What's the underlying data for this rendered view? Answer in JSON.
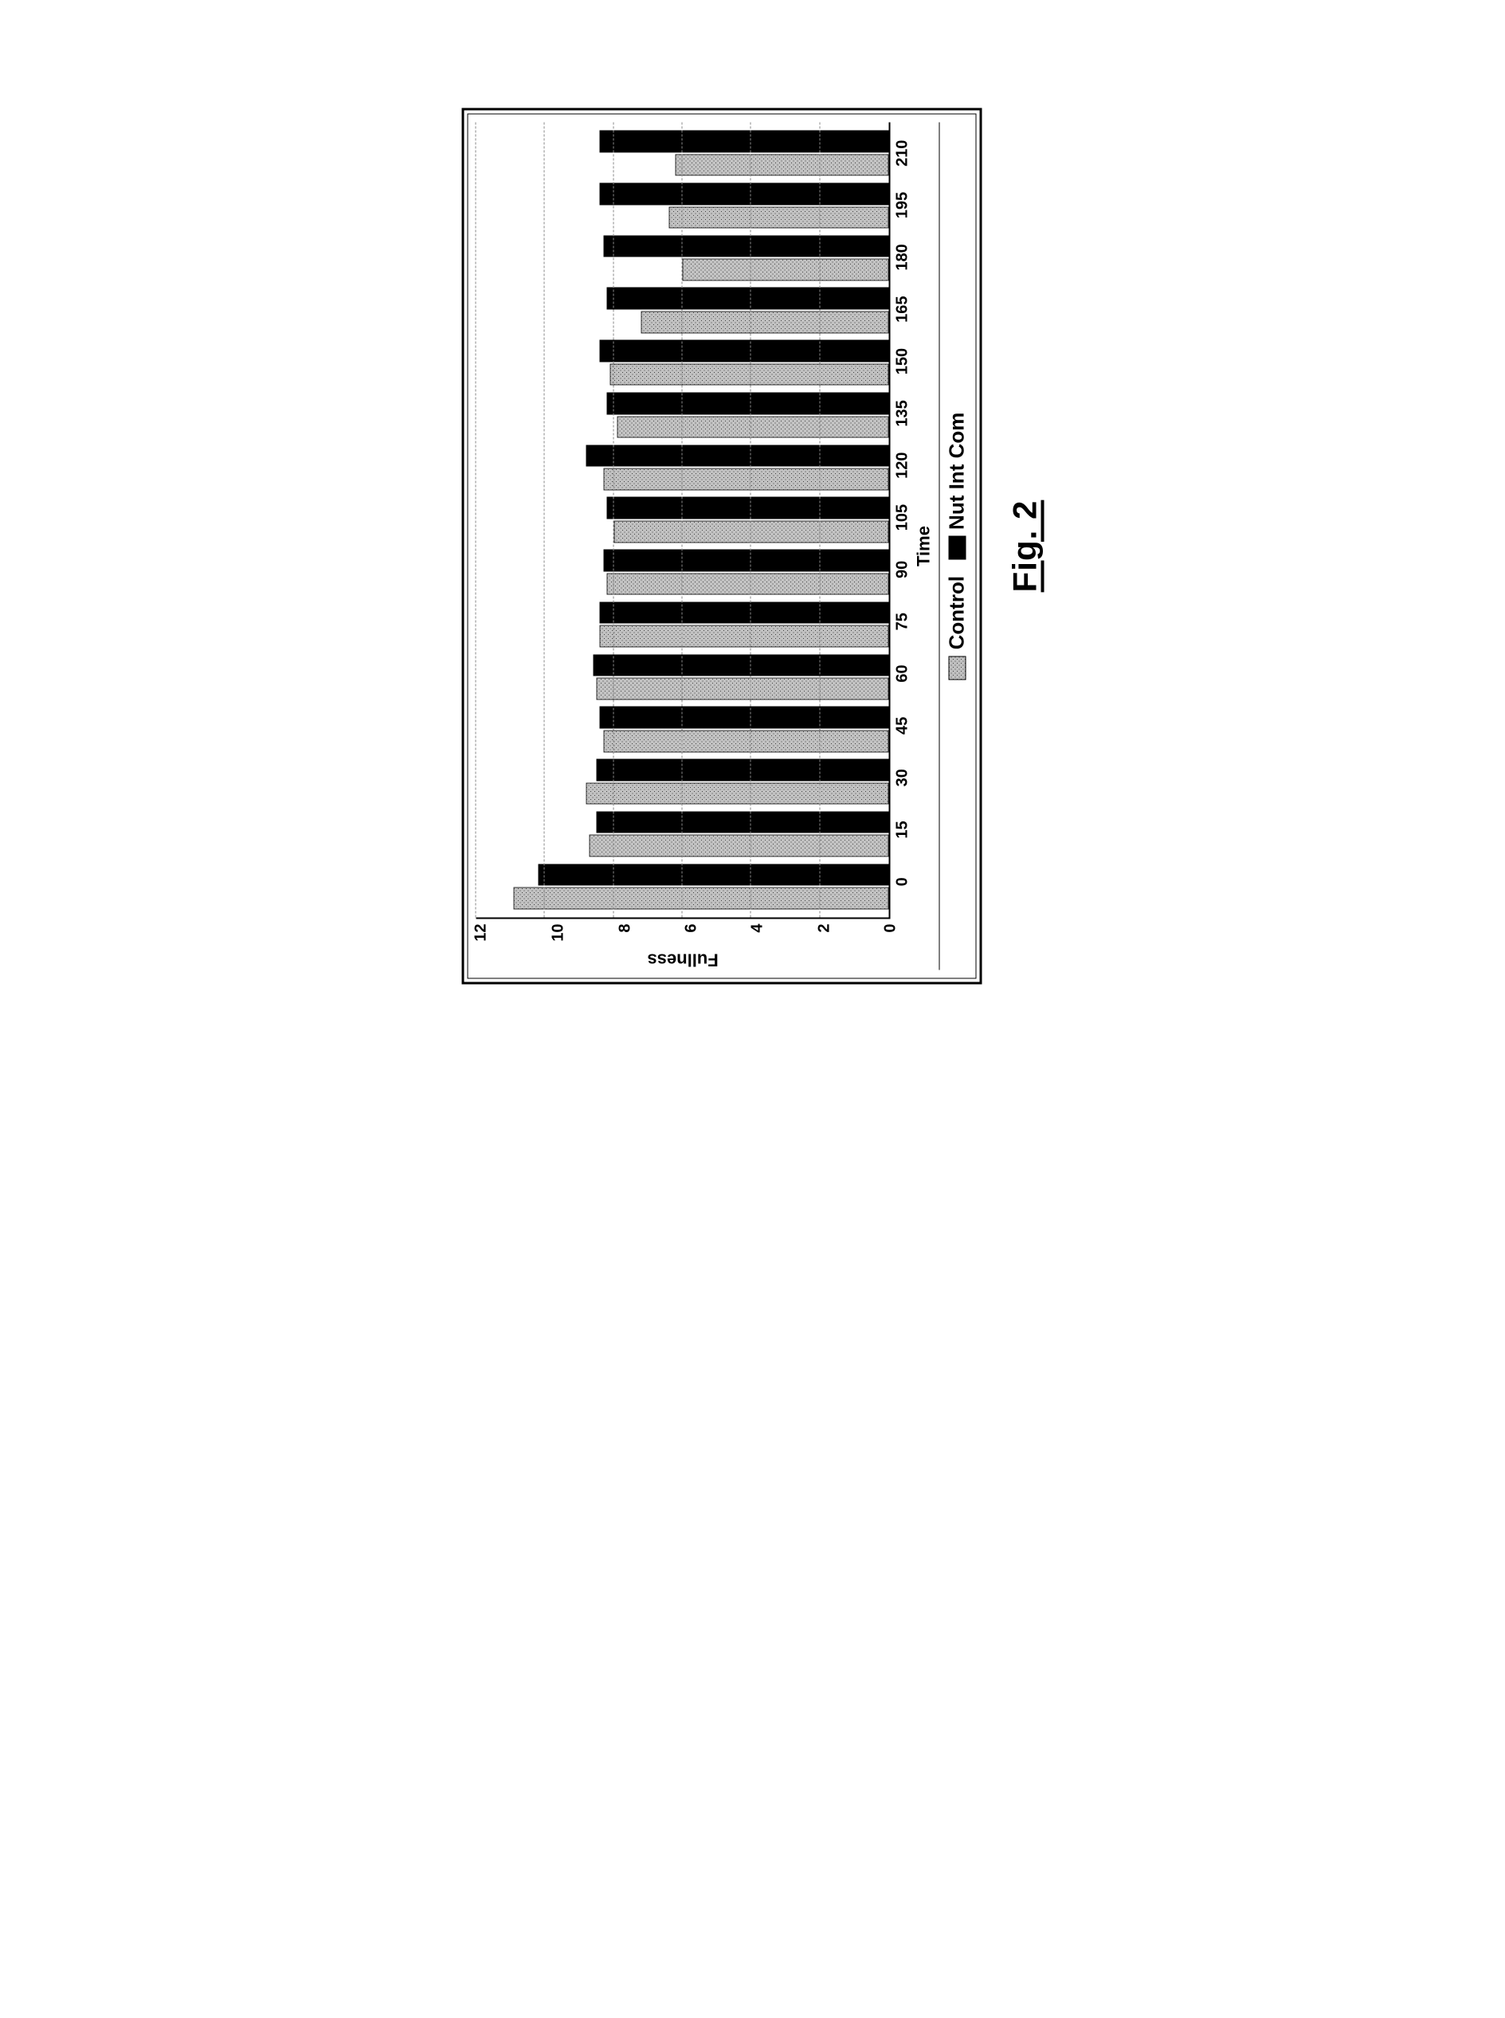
{
  "figure_caption": "Fig. 2",
  "chart": {
    "type": "bar",
    "yaxis": {
      "label": "Fullness",
      "min": 0,
      "max": 12,
      "step": 2,
      "ticks": [
        12,
        10,
        8,
        6,
        4,
        2,
        0
      ]
    },
    "xaxis": {
      "label": "Time",
      "categories": [
        0,
        15,
        30,
        45,
        60,
        75,
        90,
        105,
        120,
        135,
        150,
        165,
        180,
        195,
        210
      ]
    },
    "series": [
      {
        "name": "Control",
        "class": "control",
        "color": "#bfbfbf",
        "values": [
          10.9,
          8.7,
          8.8,
          8.3,
          8.5,
          8.4,
          8.2,
          8.0,
          8.3,
          7.9,
          8.1,
          7.2,
          6.0,
          6.4,
          6.2
        ]
      },
      {
        "name": "Nut Int Com",
        "class": "nutintcom",
        "color": "#000000",
        "values": [
          10.2,
          8.5,
          8.5,
          8.4,
          8.6,
          8.4,
          8.3,
          8.2,
          8.8,
          8.2,
          8.4,
          8.2,
          8.3,
          8.4,
          8.4
        ]
      }
    ],
    "grid_color": "#888888",
    "background_color": "#ffffff",
    "title_fontsize": 22,
    "tick_fontsize": 20,
    "legend_fontsize": 26
  }
}
